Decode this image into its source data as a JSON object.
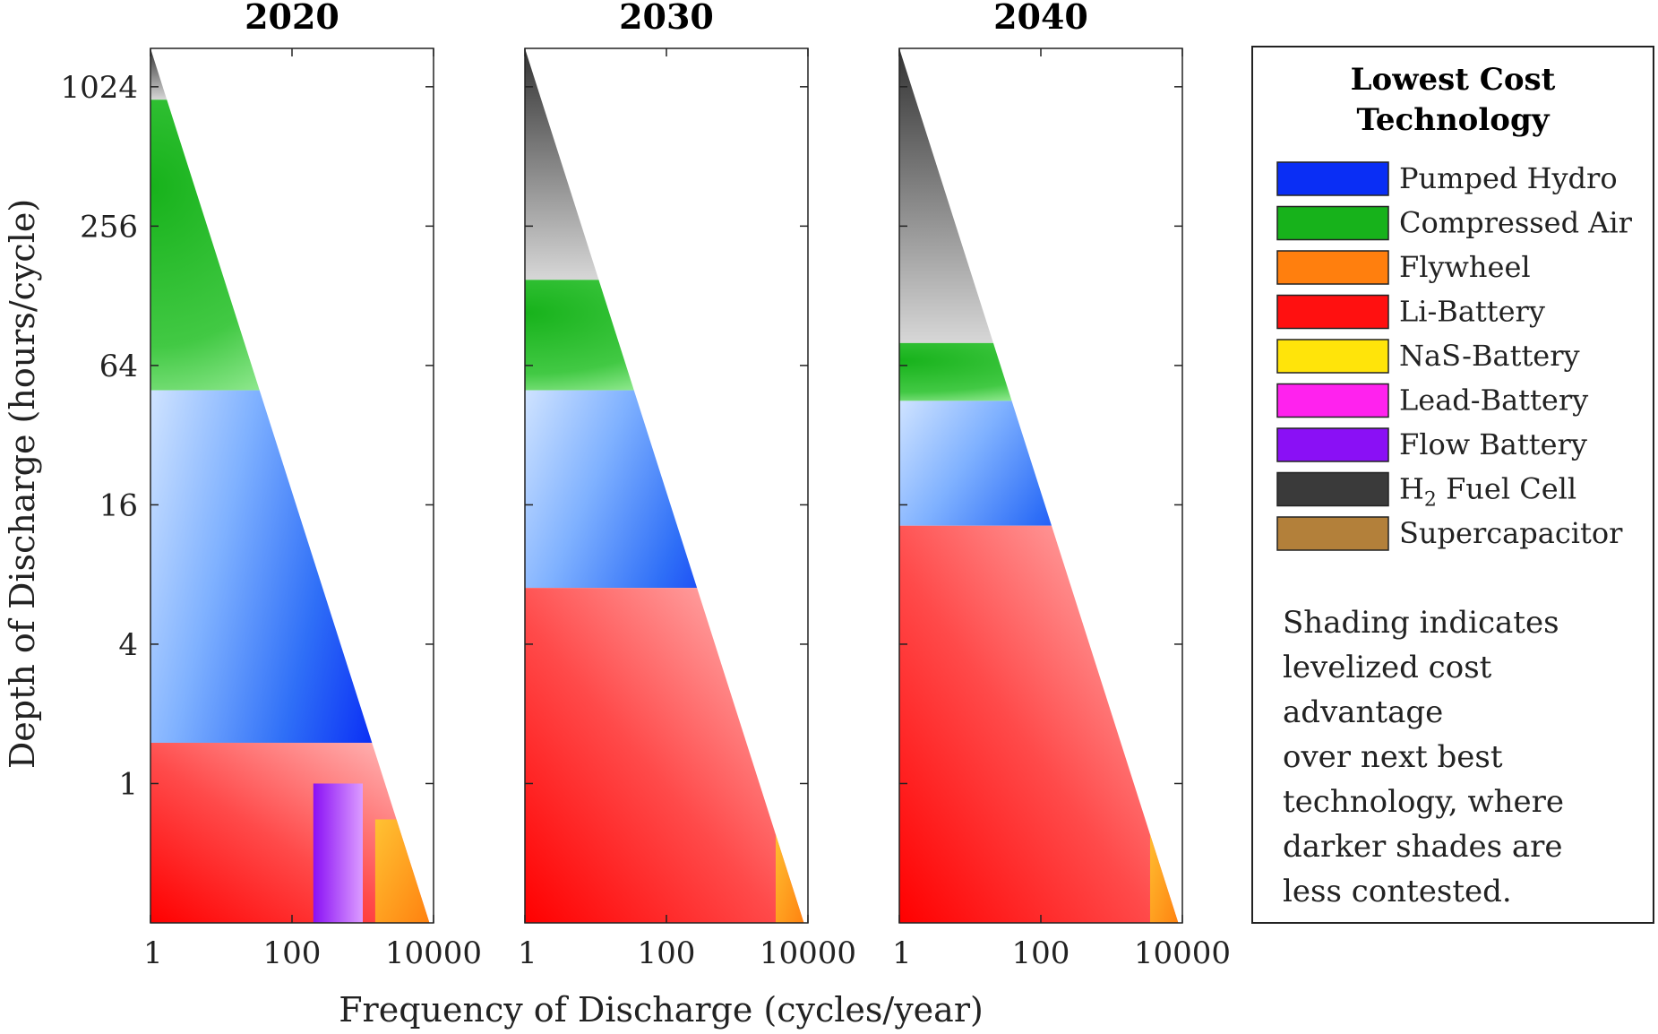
{
  "chart_data": {
    "type": "heatmap",
    "xlabel": "Frequency of Discharge (cycles/year)",
    "ylabel": "Depth of Discharge (hours/cycle)",
    "x_scale": "log",
    "y_scale": "log",
    "x_ticks": [
      1,
      100,
      10000
    ],
    "x_tick_labels": [
      "1",
      "100",
      "10000"
    ],
    "y_ticks": [
      1024,
      256,
      64,
      16,
      4,
      1
    ],
    "y_tick_labels": [
      "1024",
      "256",
      "64",
      "16",
      "4",
      "1"
    ],
    "xlim": [
      1,
      10000
    ],
    "ylim": [
      0.25,
      1500
    ],
    "panels": [
      {
        "title": "2020",
        "feasible_upper_bound": [
          [
            1,
            1500
          ],
          [
            8760,
            0.25
          ]
        ],
        "regions": [
          {
            "tech": "H2 Fuel Cell",
            "y_range": [
              900,
              1500
            ]
          },
          {
            "tech": "Compressed Air",
            "y_range": [
              50,
              900
            ]
          },
          {
            "tech": "Pumped Hydro",
            "y_range": [
              1.5,
              50
            ]
          },
          {
            "tech": "Li-Battery",
            "y_range": [
              0.25,
              1.5
            ]
          },
          {
            "tech": "Flow Battery",
            "x_range": [
              200,
              1000
            ],
            "y_range": [
              0.25,
              1.0
            ]
          },
          {
            "tech": "Flywheel",
            "x_range": [
              1500,
              10000
            ],
            "y_range": [
              0.25,
              0.7
            ]
          }
        ]
      },
      {
        "title": "2030",
        "feasible_upper_bound": [
          [
            1,
            1500
          ],
          [
            8760,
            0.25
          ]
        ],
        "regions": [
          {
            "tech": "H2 Fuel Cell",
            "y_range": [
              150,
              1500
            ]
          },
          {
            "tech": "Compressed Air",
            "y_range": [
              50,
              150
            ]
          },
          {
            "tech": "Pumped Hydro",
            "y_range": [
              7,
              50
            ]
          },
          {
            "tech": "Li-Battery",
            "y_range": [
              0.25,
              7
            ]
          },
          {
            "tech": "Flywheel",
            "x_range": [
              3500,
              10000
            ],
            "y_range": [
              0.25,
              0.7
            ]
          }
        ]
      },
      {
        "title": "2040",
        "feasible_upper_bound": [
          [
            1,
            1500
          ],
          [
            8760,
            0.25
          ]
        ],
        "regions": [
          {
            "tech": "H2 Fuel Cell",
            "y_range": [
              80,
              1500
            ]
          },
          {
            "tech": "Compressed Air",
            "y_range": [
              45,
              80
            ]
          },
          {
            "tech": "Pumped Hydro",
            "y_range": [
              13,
              45
            ]
          },
          {
            "tech": "Li-Battery",
            "y_range": [
              0.25,
              13
            ]
          },
          {
            "tech": "Flywheel",
            "x_range": [
              3500,
              10000
            ],
            "y_range": [
              0.25,
              0.7
            ]
          }
        ]
      }
    ],
    "legend": {
      "title": "Lowest Cost Technology",
      "placement": "right",
      "entries": [
        {
          "name": "Pumped Hydro",
          "color": "#0a2ef5"
        },
        {
          "name": "Compressed Air",
          "color": "#17b21b"
        },
        {
          "name": "Flywheel",
          "color": "#ff7f0e"
        },
        {
          "name": "Li-Battery",
          "color": "#ff1010"
        },
        {
          "name": "NaS-Battery",
          "color": "#ffe40a"
        },
        {
          "name": "Lead-Battery",
          "color": "#ff22ee"
        },
        {
          "name": "Flow Battery",
          "color": "#8a10f5"
        },
        {
          "name": "H2 Fuel Cell",
          "color": "#3a3a3a"
        },
        {
          "name": "Supercapacitor",
          "color": "#b3803a"
        }
      ],
      "note": "Shading indicates levelized cost advantage over next best technology, where darker shades are less contested."
    }
  }
}
